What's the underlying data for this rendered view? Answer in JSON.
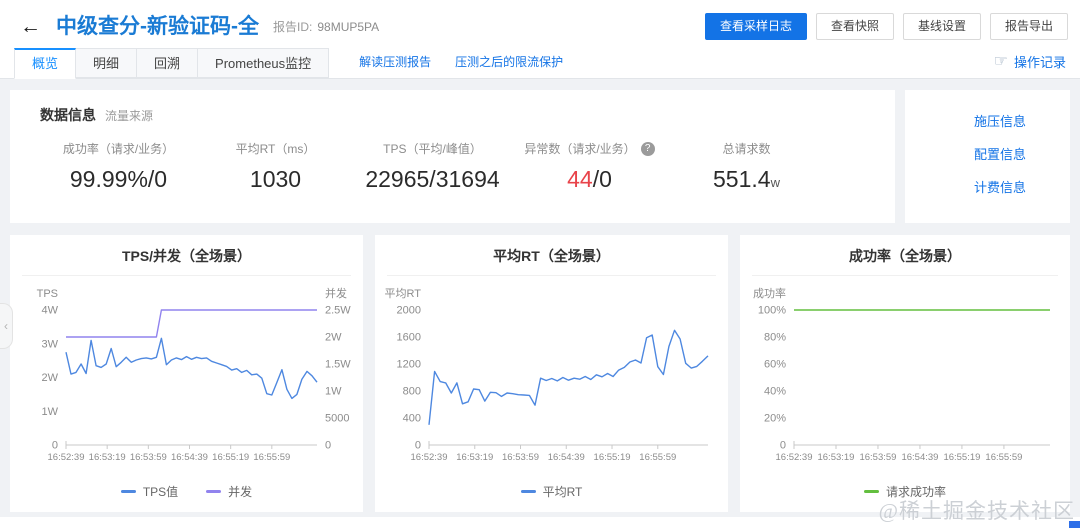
{
  "header": {
    "back_icon": "←",
    "title": "中级查分-新验证码-全",
    "report_id_label": "报告ID:",
    "report_id_value": "98MUP5PA",
    "buttons": [
      "查看采样日志",
      "查看快照",
      "基线设置",
      "报告导出"
    ]
  },
  "tabs": {
    "items": [
      {
        "label": "概览",
        "active": true
      },
      {
        "label": "明细",
        "active": false
      },
      {
        "label": "回溯",
        "active": false
      },
      {
        "label": "Prometheus监控",
        "active": false
      }
    ],
    "links": [
      "解读压测报告",
      "压测之后的限流保护"
    ],
    "ops_icon": "☞",
    "ops_label": "操作记录"
  },
  "data_info": {
    "title": "数据信息",
    "subtitle": "流量来源",
    "metrics": [
      {
        "label": "成功率（请求/业务）",
        "value": "99.99%/0"
      },
      {
        "label": "平均RT（ms）",
        "value": "1030"
      },
      {
        "label": "TPS（平均/峰值）",
        "value": "22965/31694"
      },
      {
        "label": "异常数（请求/业务）",
        "help_icon": "?",
        "value_error": "44",
        "value_rest": "/0"
      },
      {
        "label": "总请求数",
        "value": "551.4",
        "unit": "w"
      }
    ],
    "side_links": [
      "施压信息",
      "配置信息",
      "计费信息"
    ]
  },
  "watermark": {
    "text": "@稀土掘金技术社区"
  },
  "colors": {
    "accent_blue": "#1373e6",
    "title_blue": "#1a7bd4",
    "tab_active_blue": "#1890ff",
    "error_red": "#e8434a",
    "line_blue": "#4e88e0",
    "line_purple": "#9183ee",
    "line_green": "#63bf3f"
  },
  "chart_data": [
    {
      "type": "line",
      "title": "TPS/并发（全场景）",
      "x_tick_labels": [
        "16:52:39",
        "16:53:19",
        "16:53:59",
        "16:54:39",
        "16:55:19",
        "16:55:59"
      ],
      "x_tick_pos": [
        0,
        0.164,
        0.328,
        0.492,
        0.656,
        0.82
      ],
      "left_axis": {
        "name": "TPS",
        "ticks": [
          "0",
          "1W",
          "2W",
          "3W",
          "4W"
        ],
        "max": 40000
      },
      "right_axis": {
        "name": "并发",
        "ticks": [
          "0",
          "5000",
          "1W",
          "1.5W",
          "2W",
          "2.5W"
        ],
        "max": 25000
      },
      "legend_position": "bottom",
      "grid": false,
      "series": [
        {
          "name": "TPS值",
          "axis": "left",
          "color": "#4e88e0",
          "values": [
            27500,
            21000,
            21500,
            24000,
            21200,
            31000,
            23500,
            23000,
            24000,
            28600,
            23200,
            24500,
            26000,
            24500,
            25200,
            25600,
            25800,
            25500,
            26000,
            31600,
            23800,
            25200,
            25800,
            25300,
            26200,
            25400,
            26000,
            25600,
            25800,
            24800,
            24300,
            23800,
            23300,
            22200,
            22600,
            21500,
            22100,
            20800,
            21000,
            19800,
            15200,
            14800,
            18500,
            22300,
            16500,
            13800,
            15000,
            19500,
            21800,
            20500,
            18600
          ]
        },
        {
          "name": "并发",
          "axis": "right",
          "color": "#9183ee",
          "values": [
            20000,
            20000,
            20000,
            20000,
            20000,
            20000,
            20000,
            20000,
            20000,
            20000,
            20000,
            20000,
            20000,
            20000,
            20000,
            20000,
            20000,
            20000,
            20000,
            25000,
            25000,
            25000,
            25000,
            25000,
            25000,
            25000,
            25000,
            25000,
            25000,
            25000,
            25000,
            25000,
            25000,
            25000,
            25000,
            25000,
            25000,
            25000,
            25000,
            25000,
            25000,
            25000,
            25000,
            25000,
            25000,
            25000,
            25000,
            25000,
            25000,
            25000,
            25000
          ]
        }
      ]
    },
    {
      "type": "line",
      "title": "平均RT（全场景）",
      "x_tick_labels": [
        "16:52:39",
        "16:53:19",
        "16:53:59",
        "16:54:39",
        "16:55:19",
        "16:55:59"
      ],
      "x_tick_pos": [
        0,
        0.164,
        0.328,
        0.492,
        0.656,
        0.82
      ],
      "left_axis": {
        "name": "平均RT",
        "ticks": [
          "0",
          "400",
          "800",
          "1200",
          "1600",
          "2000"
        ],
        "max": 2000
      },
      "legend_position": "bottom",
      "grid": false,
      "series": [
        {
          "name": "平均RT",
          "axis": "left",
          "color": "#4e88e0",
          "values": [
            300,
            1090,
            940,
            920,
            770,
            920,
            610,
            640,
            830,
            820,
            650,
            780,
            775,
            720,
            770,
            760,
            745,
            740,
            735,
            590,
            990,
            955,
            985,
            950,
            1000,
            960,
            990,
            975,
            1015,
            970,
            1040,
            1010,
            1060,
            1015,
            1110,
            1150,
            1230,
            1260,
            1215,
            1590,
            1630,
            1160,
            1045,
            1460,
            1700,
            1570,
            1210,
            1140,
            1165,
            1240,
            1320
          ]
        }
      ]
    },
    {
      "type": "line",
      "title": "成功率（全场景）",
      "x_tick_labels": [
        "16:52:39",
        "16:53:19",
        "16:53:59",
        "16:54:39",
        "16:55:19",
        "16:55:59"
      ],
      "x_tick_pos": [
        0,
        0.164,
        0.328,
        0.492,
        0.656,
        0.82
      ],
      "left_axis": {
        "name": "成功率",
        "ticks": [
          "0",
          "20%",
          "40%",
          "60%",
          "80%",
          "100%"
        ],
        "max": 100
      },
      "legend_position": "bottom",
      "grid": false,
      "series": [
        {
          "name": "请求成功率",
          "axis": "left",
          "color": "#63bf3f",
          "values": [
            100,
            100,
            100,
            100,
            100,
            100,
            100,
            100,
            100,
            100,
            100,
            100,
            100,
            100,
            100,
            100,
            100,
            100,
            100,
            100,
            100,
            100,
            100,
            100,
            100,
            100,
            100,
            100,
            100,
            100,
            100,
            100,
            100,
            100,
            100,
            100,
            100,
            100,
            100,
            100,
            100,
            100,
            100,
            100,
            100,
            100,
            100,
            100,
            100,
            100,
            100
          ]
        }
      ]
    }
  ]
}
